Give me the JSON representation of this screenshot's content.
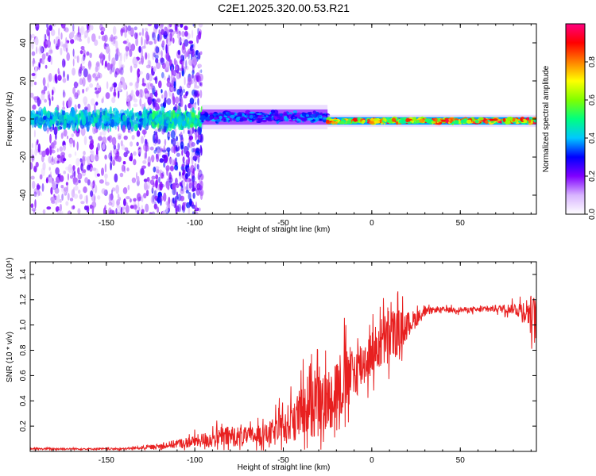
{
  "page_title": "C2E1.2025.320.00.53.R21",
  "chart_data": [
    {
      "type": "heatmap",
      "title": "C2E1.2025.320.00.53.R21",
      "xlabel": "Height of straight line (km)",
      "ylabel": "Frequency (Hz)",
      "xlim": [
        -193,
        93
      ],
      "ylim": [
        -50,
        50
      ],
      "xticks": [
        -150,
        -100,
        -50,
        0,
        50
      ],
      "xtick_labels": [
        "-150",
        "-100",
        "-50",
        "0",
        "50"
      ],
      "yticks": [
        -40,
        -20,
        0,
        20,
        40
      ],
      "ytick_labels": [
        "-40",
        "-20",
        "0",
        "20",
        "40"
      ],
      "colorbar": {
        "label": "Normalized spectral amplitude",
        "range": [
          0,
          1
        ],
        "ticks": [
          0.0,
          0.2,
          0.4,
          0.6,
          0.8
        ],
        "tick_labels": [
          "0.0",
          "0.2",
          "0.4",
          "0.6",
          "0.8"
        ],
        "colors": [
          "#ffffff",
          "#d8b4ff",
          "#8000ff",
          "#0000ff",
          "#00c8ff",
          "#00ff80",
          "#80ff00",
          "#ffff00",
          "#ff8000",
          "#ff0000",
          "#ff0080"
        ]
      },
      "regions": [
        {
          "x": [
            -193,
            -124
          ],
          "f_range": [
            -50,
            50
          ],
          "level": 0.15,
          "note": "scattered noise"
        },
        {
          "x": [
            -124,
            -96
          ],
          "f_range": [
            -50,
            50
          ],
          "level": 0.2,
          "note": "dense noise"
        },
        {
          "x": [
            -96,
            -25
          ],
          "f_center": 1,
          "f_halfwidth": 4,
          "level": 0.35
        },
        {
          "x": [
            -25,
            93
          ],
          "f_center": -1,
          "f_halfwidth": 2,
          "level": 0.85
        }
      ]
    },
    {
      "type": "line",
      "xlabel": "Height of straight line (km)",
      "ylabel": "SNR (10 * v/v)",
      "y_multiplier": "(x10⁴)",
      "xlim": [
        -193,
        93
      ],
      "ylim": [
        0,
        1.5
      ],
      "xticks": [
        -150,
        -100,
        -50,
        0,
        50
      ],
      "xtick_labels": [
        "-150",
        "-100",
        "-50",
        "0",
        "50"
      ],
      "yticks": [
        0.2,
        0.4,
        0.6,
        0.8,
        1.0,
        1.2,
        1.4
      ],
      "ytick_labels": [
        "0.2",
        "0.4",
        "0.6",
        "0.8",
        "1.0",
        "1.2",
        "1.4"
      ],
      "color": "#e82020",
      "series": [
        {
          "name": "SNR",
          "x": [
            -193,
            -180,
            -160,
            -140,
            -130,
            -120,
            -110,
            -100,
            -90,
            -80,
            -70,
            -60,
            -50,
            -45,
            -40,
            -35,
            -30,
            -25,
            -20,
            -15,
            -10,
            -5,
            0,
            5,
            10,
            15,
            20,
            25,
            30,
            35,
            40,
            50,
            60,
            70,
            80,
            85,
            90,
            93
          ],
          "y": [
            0.02,
            0.02,
            0.02,
            0.02,
            0.03,
            0.04,
            0.06,
            0.08,
            0.1,
            0.12,
            0.12,
            0.13,
            0.18,
            0.25,
            0.3,
            0.35,
            0.35,
            0.4,
            0.5,
            0.55,
            0.62,
            0.7,
            0.78,
            0.85,
            0.9,
            0.95,
            1.0,
            1.05,
            1.1,
            1.12,
            1.12,
            1.12,
            1.12,
            1.13,
            1.13,
            1.12,
            1.1,
            1.05
          ],
          "spike_amplitude": [
            0.01,
            0.01,
            0.01,
            0.01,
            0.02,
            0.03,
            0.05,
            0.07,
            0.1,
            0.12,
            0.1,
            0.12,
            0.2,
            0.25,
            0.3,
            0.35,
            0.35,
            0.35,
            0.4,
            0.4,
            0.3,
            0.3,
            0.25,
            0.3,
            0.35,
            0.25,
            0.15,
            0.1,
            0.05,
            0.03,
            0.03,
            0.03,
            0.03,
            0.04,
            0.06,
            0.12,
            0.2,
            0.25
          ]
        }
      ]
    }
  ]
}
